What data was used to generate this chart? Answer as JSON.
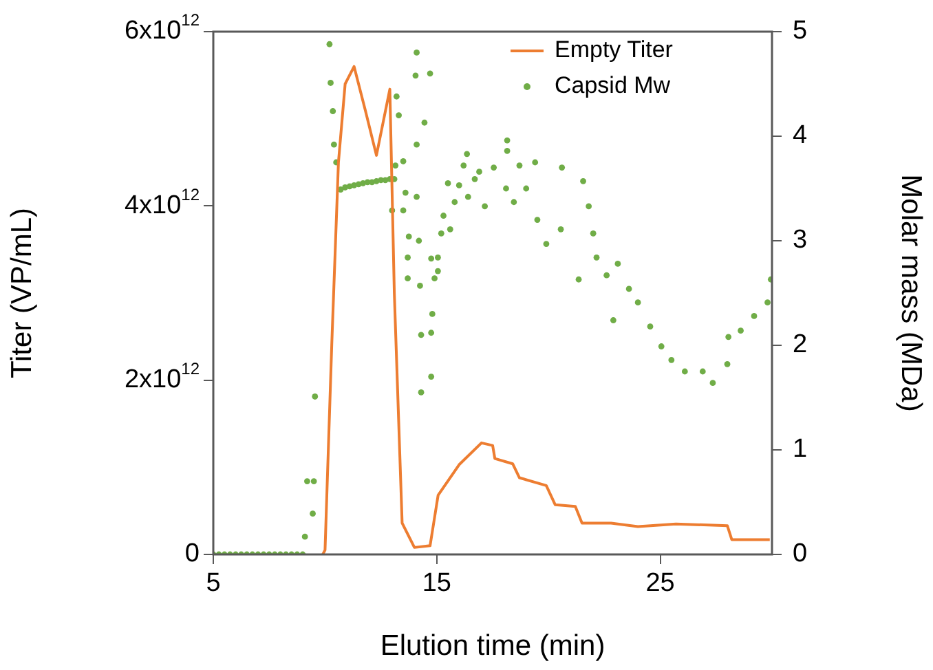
{
  "chart_data": {
    "type": "line",
    "xlabel": "Elution time (min)",
    "ylabel": "Titer (VP/mL)",
    "y2label": "Molar mass (MDa)",
    "xlim": [
      5,
      30
    ],
    "xticks": [
      5,
      15,
      25
    ],
    "ylim": [
      0,
      6000000000000
    ],
    "yticks": [
      0,
      {
        "value": 2000000000000,
        "label": "2x10$^{12}$"
      },
      {
        "value": 4000000000000,
        "label": "4x10$^{12}$"
      },
      {
        "value": 6000000000000,
        "label": "6x10$^{12}$"
      }
    ],
    "y2lim": [
      0,
      5
    ],
    "y2ticks": [
      0,
      1,
      2,
      3,
      4,
      5
    ],
    "grid": false,
    "legend": "top right",
    "series": [
      {
        "name": "Empty Titer",
        "color": "#ed7d31",
        "marker": "none",
        "line_style": "solid",
        "x": [
          9.9,
          10.0,
          10.3,
          10.6,
          10.9,
          11.3,
          11.8,
          12.3,
          12.9,
          13.1,
          13.45,
          14.0,
          14.7,
          15.06,
          16.0,
          17.0,
          17.5,
          17.6,
          18.4,
          18.7,
          19.9,
          20.3,
          21.2,
          21.5,
          22.8,
          24.0,
          25.7,
          28.0,
          28.2,
          29.9
        ],
        "values": [
          0,
          50000000000,
          2400000000000,
          4500000000000,
          5400000000000,
          5600000000000,
          5100000000000,
          4580000000000,
          5340000000000,
          3000000000000,
          360000000000,
          80000000000,
          100000000000,
          680000000000,
          1030000000000,
          1280000000000,
          1250000000000,
          1100000000000,
          1040000000000,
          880000000000,
          790000000000,
          570000000000,
          550000000000,
          360000000000,
          360000000000,
          320000000000,
          350000000000,
          330000000000,
          170000000000,
          170000000000
        ]
      },
      {
        "name": "Capsid Mw",
        "type": "scatter",
        "axis": "y2",
        "color": "#70ad47",
        "marker": "circle",
        "x": [
          5,
          5.25,
          5.5,
          5.75,
          6,
          6.25,
          6.5,
          6.75,
          7,
          7.25,
          7.5,
          7.75,
          8,
          8.25,
          8.5,
          8.75,
          9.0,
          9.1,
          9.2,
          9.5,
          9.45,
          9.55,
          10.2,
          10.25,
          10.35,
          10.4,
          10.5,
          10.7,
          10.9,
          11.1,
          11.3,
          11.5,
          11.7,
          11.9,
          12.1,
          12.3,
          12.5,
          12.7,
          12.9,
          13.1,
          13.2,
          13.3,
          13.15,
          13.0,
          13.5,
          13.5,
          13.6,
          13.75,
          13.7,
          13.7,
          14.1,
          14.05,
          14.7,
          14.45,
          14.1,
          14.1,
          14.2,
          14.25,
          14.3,
          14.3,
          14.75,
          14.75,
          14.8,
          14.75,
          14.9,
          15.05,
          15.2,
          15.05,
          15.3,
          15.5,
          15.6,
          15.8,
          16.0,
          16.2,
          16.35,
          16.4,
          16.7,
          16.9,
          17.15,
          17.55,
          18.15,
          18.15,
          18.1,
          18.45,
          18.7,
          19.0,
          19.4,
          19.5,
          19.9,
          20.6,
          20.55,
          21.35,
          21.55,
          21.8,
          22.0,
          22.15,
          22.6,
          23.1,
          22.9,
          23.6,
          24.0,
          24.55,
          25.05,
          25.5,
          26.1,
          26.9,
          27.35,
          28.0,
          28.05,
          28.6,
          29.2,
          29.8,
          29.95
        ],
        "values": [
          0,
          0,
          0,
          0,
          0,
          0,
          0,
          0,
          0,
          0,
          0,
          0,
          0,
          0,
          0,
          0,
          0,
          0.17,
          0.7,
          0.7,
          0.39,
          1.51,
          4.88,
          4.51,
          4.24,
          3.92,
          3.75,
          3.49,
          3.51,
          3.52,
          3.53,
          3.54,
          3.55,
          3.56,
          3.56,
          3.57,
          3.58,
          3.58,
          3.59,
          3.59,
          4.38,
          4.2,
          3.72,
          3.29,
          3.76,
          3.29,
          3.46,
          3.04,
          2.84,
          2.64,
          4.8,
          4.58,
          4.6,
          4.13,
          3.92,
          3.42,
          3.0,
          2.57,
          2.1,
          1.55,
          2.12,
          1.7,
          2.3,
          2.83,
          2.64,
          2.84,
          3.07,
          2.71,
          3.24,
          3.55,
          3.11,
          3.37,
          3.53,
          3.72,
          3.83,
          3.42,
          3.59,
          3.66,
          3.33,
          3.7,
          3.96,
          3.86,
          3.5,
          3.37,
          3.72,
          3.5,
          3.75,
          3.2,
          2.97,
          3.7,
          3.11,
          2.63,
          3.57,
          3.33,
          3.07,
          2.84,
          2.67,
          2.78,
          2.24,
          2.54,
          2.41,
          2.18,
          1.99,
          1.86,
          1.75,
          1.75,
          1.64,
          1.82,
          2.08,
          2.14,
          2.28,
          2.41,
          2.63
        ]
      }
    ]
  }
}
